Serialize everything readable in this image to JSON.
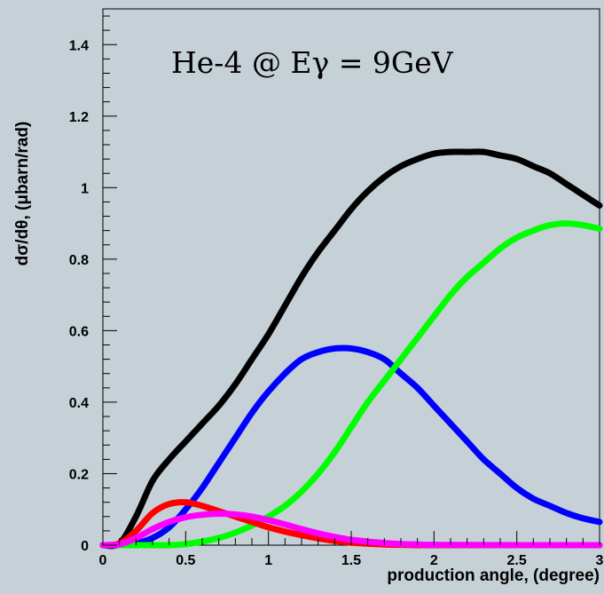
{
  "chart_data": {
    "type": "line",
    "title": "He-4 @ Eγ = 9GeV",
    "xlabel": "production angle, (degree)",
    "ylabel": "dσ/dθ, (μbarn/rad)",
    "xlim": [
      0,
      3
    ],
    "ylim": [
      0,
      1.5
    ],
    "x_ticks": [
      0,
      0.5,
      1,
      1.5,
      2,
      2.5,
      3
    ],
    "x_tick_labels": [
      "0",
      "0.5",
      "1",
      "1.5",
      "2",
      "2.5",
      "3"
    ],
    "y_ticks": [
      0,
      0.2,
      0.4,
      0.6,
      0.8,
      1.0,
      1.2,
      1.4
    ],
    "y_tick_labels": [
      "0",
      "0.2",
      "0.4",
      "0.6",
      "0.8",
      "1",
      "1.2",
      "1.4"
    ],
    "grid": false,
    "series": [
      {
        "color": "#000000",
        "x": [
          0,
          0.1,
          0.2,
          0.3,
          0.4,
          0.5,
          0.6,
          0.7,
          0.8,
          0.9,
          1.0,
          1.1,
          1.2,
          1.3,
          1.4,
          1.5,
          1.6,
          1.7,
          1.8,
          1.9,
          2.0,
          2.1,
          2.2,
          2.3,
          2.4,
          2.5,
          2.6,
          2.7,
          2.8,
          2.9,
          3.0
        ],
        "y": [
          0,
          0.005,
          0.08,
          0.18,
          0.24,
          0.29,
          0.34,
          0.39,
          0.45,
          0.52,
          0.59,
          0.67,
          0.75,
          0.82,
          0.88,
          0.94,
          0.99,
          1.03,
          1.06,
          1.08,
          1.095,
          1.1,
          1.1,
          1.1,
          1.09,
          1.08,
          1.06,
          1.04,
          1.01,
          0.98,
          0.95
        ]
      },
      {
        "color": "#0000ff",
        "x": [
          0,
          0.1,
          0.2,
          0.3,
          0.4,
          0.5,
          0.6,
          0.7,
          0.8,
          0.9,
          1.0,
          1.1,
          1.2,
          1.3,
          1.4,
          1.5,
          1.6,
          1.7,
          1.8,
          1.9,
          2.0,
          2.1,
          2.2,
          2.3,
          2.4,
          2.5,
          2.6,
          2.7,
          2.8,
          2.9,
          3.0
        ],
        "y": [
          0,
          0.0,
          0.005,
          0.02,
          0.05,
          0.1,
          0.16,
          0.23,
          0.3,
          0.37,
          0.43,
          0.48,
          0.52,
          0.54,
          0.55,
          0.55,
          0.54,
          0.52,
          0.48,
          0.44,
          0.39,
          0.34,
          0.29,
          0.24,
          0.2,
          0.16,
          0.13,
          0.11,
          0.09,
          0.075,
          0.065
        ]
      },
      {
        "color": "#00ff00",
        "x": [
          0,
          0.1,
          0.2,
          0.3,
          0.4,
          0.5,
          0.6,
          0.7,
          0.8,
          0.9,
          1.0,
          1.1,
          1.2,
          1.3,
          1.4,
          1.5,
          1.6,
          1.7,
          1.8,
          1.9,
          2.0,
          2.1,
          2.2,
          2.3,
          2.4,
          2.5,
          2.6,
          2.7,
          2.8,
          2.9,
          3.0
        ],
        "y": [
          0,
          0,
          0,
          0,
          0.0,
          0.003,
          0.01,
          0.02,
          0.035,
          0.055,
          0.08,
          0.11,
          0.15,
          0.2,
          0.26,
          0.33,
          0.4,
          0.46,
          0.52,
          0.58,
          0.64,
          0.7,
          0.75,
          0.79,
          0.83,
          0.86,
          0.88,
          0.895,
          0.9,
          0.895,
          0.885
        ]
      },
      {
        "color": "#ff0000",
        "x": [
          0,
          0.1,
          0.2,
          0.3,
          0.4,
          0.5,
          0.6,
          0.7,
          0.8,
          0.9,
          1.0,
          1.1,
          1.2,
          1.3,
          1.4,
          1.5,
          1.6,
          1.7,
          1.8,
          1.9,
          2.0,
          2.5,
          3.0
        ],
        "y": [
          0,
          0.005,
          0.04,
          0.09,
          0.115,
          0.12,
          0.11,
          0.095,
          0.08,
          0.065,
          0.05,
          0.038,
          0.028,
          0.019,
          0.012,
          0.007,
          0.004,
          0.002,
          0.001,
          0.0,
          0.0,
          0,
          0
        ]
      },
      {
        "color": "#ff00ff",
        "x": [
          0,
          0.1,
          0.2,
          0.3,
          0.4,
          0.5,
          0.6,
          0.7,
          0.8,
          0.9,
          1.0,
          1.1,
          1.2,
          1.3,
          1.4,
          1.5,
          1.6,
          1.7,
          1.8,
          1.9,
          2.0,
          2.5,
          3.0
        ],
        "y": [
          0,
          0.002,
          0.02,
          0.045,
          0.065,
          0.078,
          0.085,
          0.088,
          0.086,
          0.08,
          0.07,
          0.058,
          0.045,
          0.033,
          0.023,
          0.015,
          0.01,
          0.006,
          0.003,
          0.002,
          0.001,
          0,
          0
        ]
      }
    ]
  }
}
